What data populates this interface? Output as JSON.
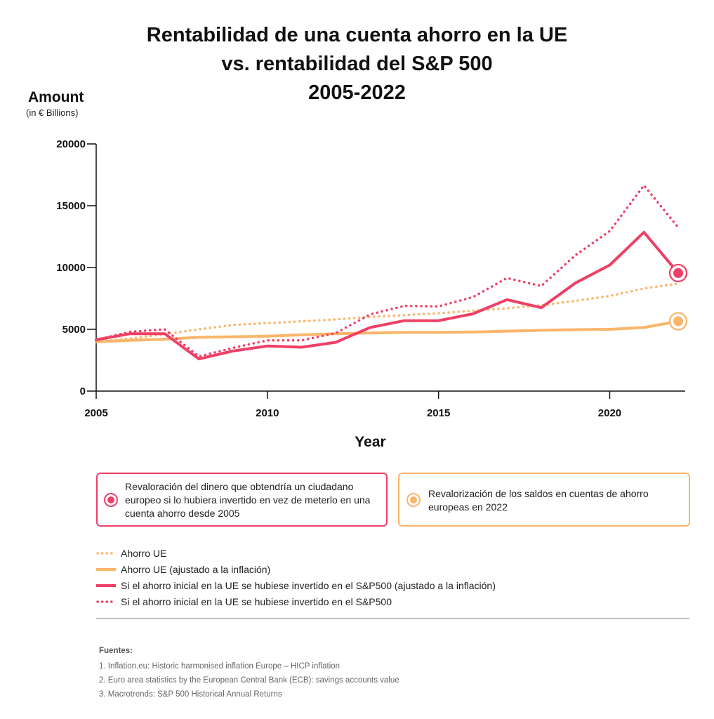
{
  "title_lines": [
    "Rentabilidad de una cuenta ahorro en la UE",
    "vs. rentabilidad del S&P 500",
    "2005-2022"
  ],
  "ylabel": "Amount",
  "yunit": "(in € Billions)",
  "xlabel": "Year",
  "colors": {
    "red": "#ef3f66",
    "orange": "#fbb56a",
    "axis": "#111111"
  },
  "callouts": {
    "red": "Revaloración del dinero que obtendría un ciudadano europeo si lo hubiera invertido en vez de meterlo en una cuenta ahorro desde 2005",
    "orange": "Revalorización de los saldos en cuentas de ahorro europeas en 2022"
  },
  "legend": [
    {
      "label": "Ahorro UE",
      "color": "#fbb56a",
      "style": "dotted"
    },
    {
      "label": "Ahorro UE (ajustado a la inflación)",
      "color": "#fbb56a",
      "style": "solid"
    },
    {
      "label": "Si el ahorro inicial en la UE se hubiese invertido en el S&P500 (ajustado a la inflación)",
      "color": "#ef3f66",
      "style": "solid"
    },
    {
      "label": "Si el ahorro inicial en la UE se hubiese invertido en el S&P500",
      "color": "#ef3f66",
      "style": "dotted"
    }
  ],
  "sources": {
    "title": "Fuentes:",
    "items": [
      "1. Inflation.eu: Historic harmonised inflation Europe – HICP inflation",
      "2. Euro area statistics by the European Central Bank (ECB): savings accounts value",
      "3. Macrotrends: S&P 500 Historical Annual Returns"
    ]
  },
  "chart_data": {
    "type": "line",
    "x": [
      2005,
      2006,
      2007,
      2008,
      2009,
      2010,
      2011,
      2012,
      2013,
      2014,
      2015,
      2016,
      2017,
      2018,
      2019,
      2020,
      2021,
      2022
    ],
    "series": [
      {
        "name": "Ahorro UE",
        "style": "dotted",
        "color": "#fbb56a",
        "values": [
          4000,
          4250,
          4600,
          5000,
          5350,
          5500,
          5650,
          5800,
          6000,
          6150,
          6300,
          6500,
          6700,
          6950,
          7300,
          7700,
          8300,
          8700
        ]
      },
      {
        "name": "Ahorro UE (ajustado a la inflación)",
        "style": "solid",
        "color": "#fbb56a",
        "values": [
          4000,
          4100,
          4200,
          4350,
          4400,
          4450,
          4550,
          4650,
          4700,
          4750,
          4750,
          4780,
          4850,
          4920,
          4970,
          5000,
          5150,
          5650
        ]
      },
      {
        "name": "Si el ahorro inicial en la UE se hubiese invertido en el S&P500 (ajustado a la inflación)",
        "style": "solid",
        "color": "#ef3f66",
        "values": [
          4150,
          4650,
          4650,
          2600,
          3250,
          3650,
          3550,
          3950,
          5150,
          5700,
          5700,
          6250,
          7400,
          6750,
          8750,
          10200,
          12850,
          9550
        ]
      },
      {
        "name": "Si el ahorro inicial en la UE se hubiese invertido en el S&P500",
        "style": "dotted",
        "color": "#ef3f66",
        "values": [
          4150,
          4800,
          5000,
          2800,
          3500,
          4100,
          4100,
          4700,
          6200,
          6900,
          6850,
          7600,
          9150,
          8500,
          11000,
          12950,
          16650,
          13250
        ]
      }
    ],
    "highlight_markers": [
      {
        "series": 2,
        "x": 2022
      },
      {
        "series": 1,
        "x": 2022
      }
    ],
    "xticks": [
      2005,
      2010,
      2015,
      2020
    ],
    "yticks": [
      0,
      5000,
      10000,
      15000,
      20000
    ],
    "xlim": [
      2005,
      2022
    ],
    "ylim": [
      0,
      20000
    ],
    "grid": false
  }
}
